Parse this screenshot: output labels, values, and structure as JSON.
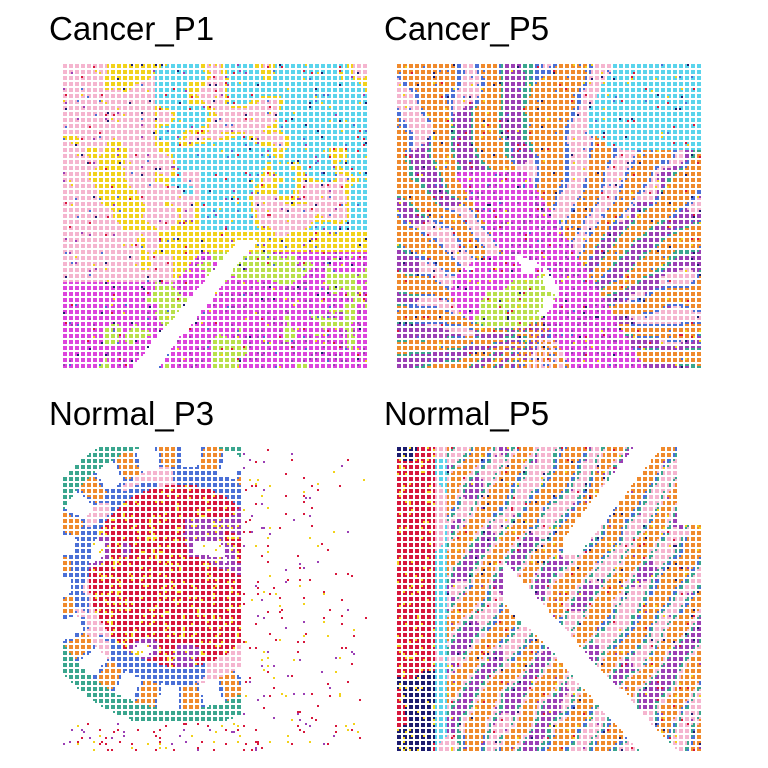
{
  "panels": [
    {
      "title": "Cancer_P1"
    },
    {
      "title": "Cancer_P5"
    },
    {
      "title": "Normal_P3"
    },
    {
      "title": "Normal_P5"
    }
  ],
  "cluster_colors": {
    "cyan": "#5ad4ec",
    "pink": "#f5b5cf",
    "magenta": "#dd44dd",
    "lime": "#b8e04a",
    "orange": "#f08a2c",
    "teal": "#3aa68e",
    "royal_blue": "#4a6fd6",
    "crimson": "#d8173c",
    "yellow": "#f2d21a",
    "purple": "#9b3fb5",
    "navy": "#1c1c6e"
  }
}
